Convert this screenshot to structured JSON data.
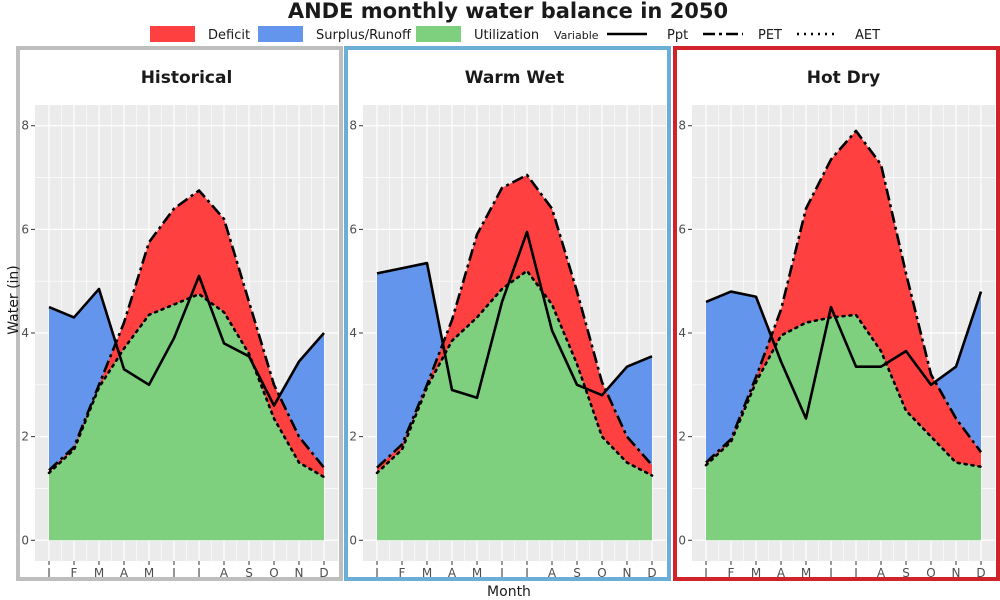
{
  "title": "ANDE monthly water balance in 2050",
  "xlabel": "Month",
  "ylabel": "Water (in)",
  "legend": {
    "fill_items": [
      {
        "label": "Deficit",
        "color": "#FF4040"
      },
      {
        "label": "Surplus/Runoff",
        "color": "#6495ED"
      },
      {
        "label": "Utilization",
        "color": "#7ECF7E"
      }
    ],
    "variable_title": "Variable",
    "line_items": [
      {
        "label": "Ppt",
        "style": "solid"
      },
      {
        "label": "PET",
        "style": "dashdot"
      },
      {
        "label": "AET",
        "style": "dotted"
      }
    ]
  },
  "colors": {
    "deficit": "#FF4040",
    "surplus": "#6495ED",
    "utilization": "#7ECF7E",
    "panel_bg": "#EBEBEB",
    "grid": "#FFFFFF"
  },
  "chart_data": {
    "type": "area",
    "months": [
      "J",
      "F",
      "M",
      "A",
      "M",
      "J",
      "J",
      "A",
      "S",
      "O",
      "N",
      "D"
    ],
    "ylim": [
      -0.4,
      8.4
    ],
    "yticks": [
      0,
      2,
      4,
      6,
      8
    ],
    "panels": [
      {
        "title": "Historical",
        "border_color": "#BEBEBE",
        "series": {
          "Ppt": [
            4.5,
            4.3,
            4.85,
            3.3,
            3.0,
            3.9,
            5.1,
            3.8,
            3.55,
            2.6,
            3.45,
            4.0
          ],
          "PET": [
            1.35,
            1.8,
            3.0,
            4.2,
            5.75,
            6.4,
            6.75,
            6.2,
            4.6,
            3.0,
            2.0,
            1.4
          ],
          "AET": [
            1.3,
            1.75,
            2.95,
            3.7,
            4.35,
            4.55,
            4.75,
            4.4,
            3.6,
            2.35,
            1.5,
            1.22
          ]
        }
      },
      {
        "title": "Warm Wet",
        "border_color": "#6BAED6",
        "series": {
          "Ppt": [
            5.15,
            5.25,
            5.35,
            2.9,
            2.75,
            4.6,
            5.95,
            4.05,
            3.0,
            2.8,
            3.35,
            3.55
          ],
          "PET": [
            1.4,
            1.85,
            3.0,
            4.25,
            5.9,
            6.8,
            7.05,
            6.4,
            4.8,
            3.05,
            2.0,
            1.45
          ],
          "AET": [
            1.3,
            1.75,
            2.95,
            3.85,
            4.3,
            4.85,
            5.2,
            4.55,
            3.4,
            2.0,
            1.5,
            1.25
          ]
        }
      },
      {
        "title": "Hot Dry",
        "border_color": "#D0232A",
        "series": {
          "Ppt": [
            4.6,
            4.8,
            4.7,
            3.45,
            2.35,
            4.5,
            3.35,
            3.35,
            3.65,
            3.0,
            3.35,
            4.8
          ],
          "PET": [
            1.5,
            1.95,
            3.15,
            4.45,
            6.4,
            7.35,
            7.9,
            7.25,
            5.15,
            3.2,
            2.35,
            1.7
          ],
          "AET": [
            1.45,
            1.9,
            3.05,
            3.95,
            4.2,
            4.3,
            4.35,
            3.65,
            2.5,
            2.0,
            1.5,
            1.42
          ]
        }
      }
    ]
  }
}
